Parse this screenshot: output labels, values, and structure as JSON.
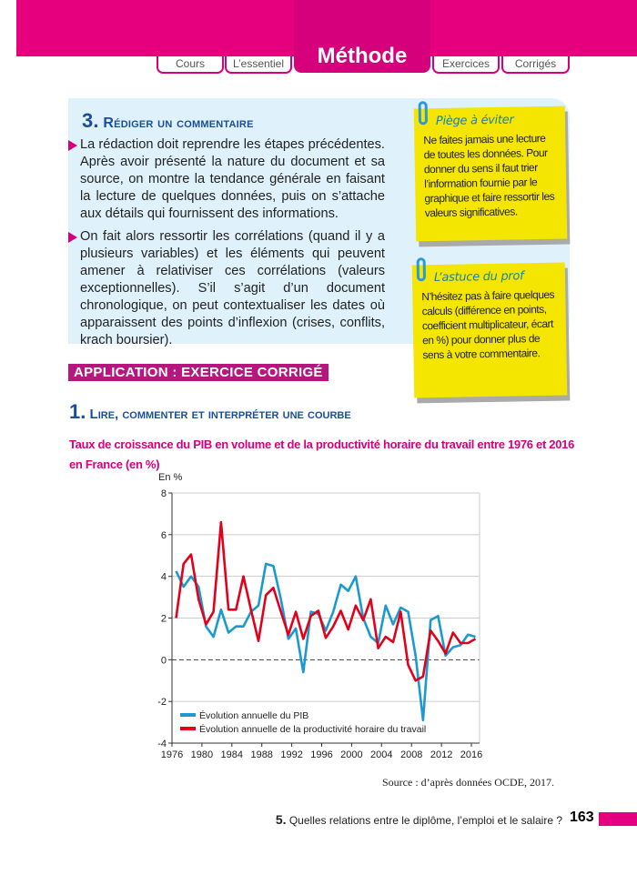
{
  "nav": {
    "tabs": [
      {
        "label": "Cours"
      },
      {
        "label": "L’essentiel"
      },
      {
        "label": "Méthode",
        "active": true
      },
      {
        "label": "Exercices"
      },
      {
        "label": "Corrigés"
      }
    ]
  },
  "section": {
    "number": "3.",
    "title": "Rédiger un commentaire",
    "paragraphs": [
      "La rédaction doit reprendre les étapes précédentes. Après avoir présenté la nature du document et sa source, on montre la tendance générale en faisant la lecture de quelques données, puis on s’attache aux détails qui fournissent des informations.",
      "On fait alors ressortir les corrélations (quand il y a plusieurs variables) et les éléments qui peuvent amener à relativiser ces corrélations (valeurs excep­tionnelles). S’il s’agit d’un document chronologique, on peut contextualiser les dates où apparaissent des points d’inflexion (crises, conflits, krach boursier)."
    ]
  },
  "notes": [
    {
      "title": "Piège à éviter",
      "text": "Ne faites jamais une lecture de toutes les données. Pour donner du sens il faut trier l’information fournie par le graphique et faire ressortir les valeurs significatives."
    },
    {
      "title": "L’astuce du prof",
      "text": "N’hésitez pas à faire quelques calculs (différence en points, coefficient multiplicateur, écart en %) pour donner plus de sens à votre commentaire."
    }
  ],
  "application": {
    "label": "APPLICATION : EXERCICE CORRIGÉ"
  },
  "exercise": {
    "number": "1.",
    "title": "Lire, commenter et interpréter une courbe"
  },
  "chart_data": {
    "type": "line",
    "title": "Taux de croissance du PIB en volume et de la productivité horaire du travail entre 1976 et 2016 en France (en %)",
    "ylabel": "En %",
    "xlabel": "",
    "xlim": [
      1976,
      2016
    ],
    "ylim": [
      -4,
      8
    ],
    "xticks": [
      1976,
      1980,
      1984,
      1988,
      1992,
      1996,
      2000,
      2004,
      2008,
      2012,
      2016
    ],
    "yticks": [
      -4,
      -2,
      0,
      2,
      4,
      6,
      8
    ],
    "grid": true,
    "legend": "bottom-left",
    "x": [
      1976,
      1977,
      1978,
      1979,
      1980,
      1981,
      1982,
      1983,
      1984,
      1985,
      1986,
      1987,
      1988,
      1989,
      1990,
      1991,
      1992,
      1993,
      1994,
      1995,
      1996,
      1997,
      1998,
      1999,
      2000,
      2001,
      2002,
      2003,
      2004,
      2005,
      2006,
      2007,
      2008,
      2009,
      2010,
      2011,
      2012,
      2013,
      2014,
      2015,
      2016
    ],
    "series": [
      {
        "name": "Évolution annuelle du PIB",
        "color": "#1a9ad0",
        "values": [
          4.25,
          3.5,
          4.0,
          3.5,
          1.6,
          1.1,
          2.4,
          1.3,
          1.6,
          1.6,
          2.3,
          2.6,
          4.6,
          4.5,
          2.9,
          1.0,
          1.5,
          -0.6,
          2.3,
          2.2,
          1.4,
          2.3,
          3.6,
          3.3,
          4.0,
          2.0,
          1.1,
          0.8,
          2.6,
          1.7,
          2.5,
          2.3,
          0.2,
          -2.9,
          1.9,
          2.1,
          0.2,
          0.6,
          0.7,
          1.2,
          1.1
        ]
      },
      {
        "name": "Évolution annuelle de la productivité horaire du travail",
        "color": "#e3001b",
        "values": [
          2.0,
          4.6,
          5.05,
          2.9,
          1.7,
          2.3,
          6.6,
          2.4,
          2.4,
          4.0,
          2.4,
          0.9,
          3.1,
          3.45,
          2.3,
          1.2,
          2.3,
          1.0,
          2.1,
          2.35,
          1.05,
          1.6,
          2.35,
          1.45,
          2.6,
          1.9,
          2.9,
          0.55,
          1.1,
          0.85,
          2.3,
          -0.25,
          -1.0,
          -0.8,
          1.4,
          0.9,
          0.3,
          1.3,
          0.8,
          0.8,
          1.0
        ]
      }
    ],
    "source": "Source : d’après données OCDE, 2017."
  },
  "footer": {
    "chapter_num": "5.",
    "chapter_title": "Quelles relations entre le diplôme, l’emploi et le salaire ?",
    "page": "163"
  },
  "colors": {
    "brand": "#e6007e",
    "heading": "#1a4e9a",
    "note": "#f4e600",
    "box": "#dff1fa"
  }
}
